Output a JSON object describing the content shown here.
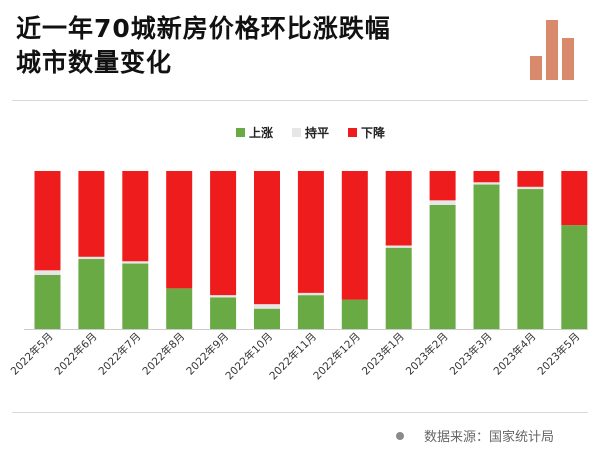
{
  "title": {
    "line1": "近一年70城新房价格环比涨跌幅",
    "line2": "城市数量变化"
  },
  "source": "数据来源：国家统计局",
  "colors": {
    "rise": "#6aaa45",
    "flat": "#e6e6e6",
    "fall": "#ee1c1c",
    "logo": "#d9896c"
  },
  "chart_data": {
    "type": "bar",
    "stacked": true,
    "categories": [
      "2022年5月",
      "2022年6月",
      "2022年7月",
      "2022年8月",
      "2022年9月",
      "2022年10月",
      "2022年11月",
      "2022年12月",
      "2023年1月",
      "2023年2月",
      "2023年3月",
      "2023年4月",
      "2023年5月"
    ],
    "series": [
      {
        "name": "上涨",
        "values": [
          24,
          31,
          29,
          18,
          14,
          9,
          15,
          13,
          36,
          55,
          64,
          62,
          46
        ]
      },
      {
        "name": "持平",
        "values": [
          2,
          1,
          1,
          0,
          1,
          2,
          1,
          0,
          1,
          2,
          1,
          1,
          0
        ]
      },
      {
        "name": "下降",
        "values": [
          44,
          38,
          40,
          52,
          55,
          59,
          54,
          57,
          33,
          13,
          5,
          7,
          24
        ]
      }
    ],
    "ylim": [
      0,
      70
    ],
    "legend_position": "top-center",
    "grid": false
  }
}
